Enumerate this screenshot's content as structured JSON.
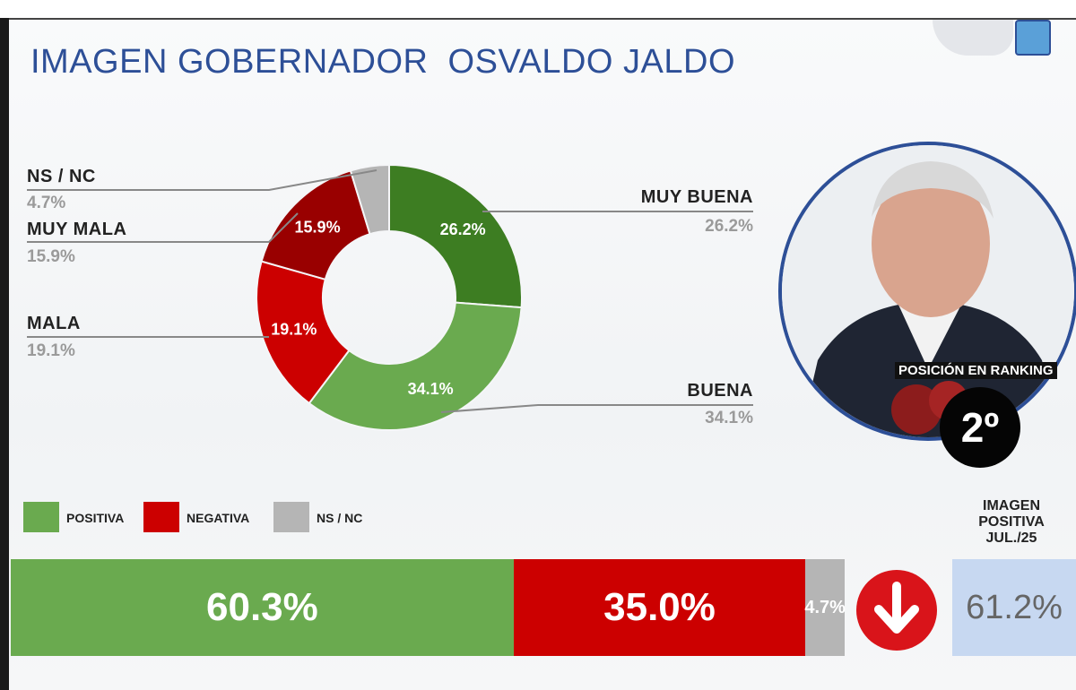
{
  "title": "IMAGEN GOBERNADOR  OSVALDO JALDO",
  "colors": {
    "positiva": "#6aaa4f",
    "muy_buena": "#3d7d22",
    "negativa": "#cc0000",
    "muy_mala": "#990000",
    "nsnc": "#b5b5b5",
    "title": "#2d4f97"
  },
  "chart_data": [
    {
      "type": "pie",
      "donut": true,
      "categories": [
        "MUY BUENA",
        "BUENA",
        "MALA",
        "MUY MALA",
        "NS / NC"
      ],
      "values": [
        26.2,
        34.1,
        19.1,
        15.9,
        4.7
      ],
      "value_labels": [
        "26.2%",
        "34.1%",
        "19.1%",
        "15.9%",
        "4.7%"
      ],
      "series_colors": [
        "#3d7d22",
        "#6aaa4f",
        "#cc0000",
        "#990000",
        "#b5b5b5"
      ]
    },
    {
      "type": "bar",
      "orientation": "horizontal",
      "stacked": true,
      "categories": [
        "POSITIVA",
        "NEGATIVA",
        "NS / NC"
      ],
      "values": [
        60.3,
        35.0,
        4.7
      ],
      "value_labels": [
        "60.3%",
        "35.0%",
        "4.7%"
      ],
      "legend": [
        "POSITIVA",
        "NEGATIVA",
        "NS / NC"
      ],
      "legend_placement": "top-left"
    }
  ],
  "comparison": {
    "heading": [
      "IMAGEN",
      "POSITIVA",
      "JUL./25"
    ],
    "value": "61.2%",
    "trend": "down",
    "trend_icon": "arrow-down-icon"
  },
  "ranking": {
    "label": "POSICIÓN EN RANKING",
    "value": "2º"
  }
}
